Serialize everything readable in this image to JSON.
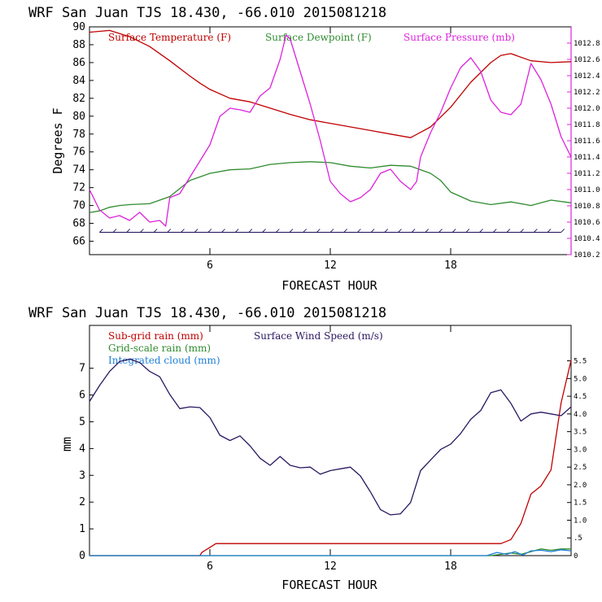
{
  "chart_data": [
    {
      "type": "line",
      "header": "WRF  San Juan TJS  18.430, -66.010  2015081218",
      "ylabel": "Degrees F",
      "xlabel": "FORECAST HOUR",
      "xlim": [
        0,
        24
      ],
      "x_ticks": [
        6,
        12,
        18
      ],
      "ylim": [
        64.5,
        90
      ],
      "y_ticks": [
        66,
        68,
        70,
        72,
        74,
        76,
        78,
        80,
        82,
        84,
        86,
        88,
        90
      ],
      "y2lim": [
        1010.2,
        1013.0
      ],
      "y2_ticks": [
        "1010.2",
        "1010.4",
        "1010.6",
        "1010.8",
        "1011.0",
        "1011.2",
        "1011.4",
        "1011.6",
        "1011.8",
        "1012.0",
        "1012.2",
        "1012.4",
        "1012.6",
        "1012.8"
      ],
      "legend": [
        {
          "label": "Surface Temperature (F)",
          "color": "#c00000"
        },
        {
          "label": "Surface Dewpoint (F)",
          "color": "#2e8b2e"
        },
        {
          "label": "Surface Pressure (mb)",
          "color": "#dd22dd"
        }
      ],
      "series": [
        {
          "name": "Surface Temperature (F)",
          "axis": "left",
          "color": "#c00000",
          "x": [
            0,
            1,
            2,
            3,
            4,
            5,
            5.5,
            6,
            7,
            8,
            9,
            10,
            11,
            12,
            13,
            14,
            15,
            16,
            17,
            18,
            19,
            20,
            20.5,
            21,
            22,
            23,
            24
          ],
          "y": [
            89.4,
            89.6,
            88.9,
            87.8,
            86.2,
            84.5,
            83.7,
            83.0,
            82.0,
            81.6,
            80.9,
            80.2,
            79.6,
            79.2,
            78.8,
            78.4,
            78.0,
            77.6,
            78.8,
            81.0,
            83.8,
            86.0,
            86.8,
            87.0,
            86.2,
            86.0,
            86.1
          ]
        },
        {
          "name": "Surface Dewpoint (F)",
          "axis": "left",
          "color": "#2e8b2e",
          "x": [
            0,
            0.5,
            1,
            1.5,
            2,
            3,
            4,
            5,
            6,
            7,
            8,
            9,
            10,
            11,
            12,
            13,
            14,
            15,
            16,
            17,
            17.5,
            18,
            19,
            20,
            21,
            22,
            22.5,
            23,
            24
          ],
          "y": [
            69.2,
            69.4,
            69.8,
            70.0,
            70.1,
            70.2,
            71.0,
            72.8,
            73.6,
            74.0,
            74.1,
            74.6,
            74.8,
            74.9,
            74.8,
            74.4,
            74.2,
            74.5,
            74.4,
            73.6,
            72.8,
            71.5,
            70.5,
            70.1,
            70.4,
            70.0,
            70.3,
            70.6,
            70.3
          ]
        },
        {
          "name": "Surface Pressure (mb)",
          "axis": "right",
          "color": "#dd22dd",
          "x": [
            0,
            0.5,
            1,
            1.5,
            2,
            2.5,
            3,
            3.5,
            3.8,
            4,
            4.5,
            5,
            5.5,
            6,
            6.5,
            7,
            7.5,
            8,
            8.5,
            9,
            9.5,
            9.8,
            10,
            10.5,
            11,
            11.5,
            12,
            12.5,
            13,
            13.5,
            14,
            14.5,
            15,
            15.5,
            16,
            16.3,
            16.5,
            17,
            17.5,
            18,
            18.5,
            19,
            19.5,
            20,
            20.5,
            21,
            21.5,
            22,
            22.5,
            23,
            23.5,
            24
          ],
          "y": [
            1011.0,
            1010.75,
            1010.65,
            1010.68,
            1010.62,
            1010.72,
            1010.6,
            1010.62,
            1010.55,
            1010.9,
            1010.95,
            1011.15,
            1011.35,
            1011.55,
            1011.9,
            1012.0,
            1011.98,
            1011.95,
            1012.15,
            1012.25,
            1012.6,
            1012.9,
            1012.85,
            1012.45,
            1012.05,
            1011.6,
            1011.1,
            1010.95,
            1010.85,
            1010.9,
            1011.0,
            1011.2,
            1011.25,
            1011.1,
            1011.0,
            1011.1,
            1011.4,
            1011.7,
            1011.95,
            1012.25,
            1012.5,
            1012.62,
            1012.45,
            1012.1,
            1011.95,
            1011.92,
            1012.05,
            1012.55,
            1012.35,
            1012.05,
            1011.65,
            1011.4
          ]
        }
      ],
      "wind_barbs": {
        "x_start": 0.5,
        "x_end": 23.5,
        "y": 67.0
      }
    },
    {
      "type": "line",
      "header": "WRF  San Juan TJS  18.430, -66.010  2015081218",
      "ylabel": "mm",
      "xlabel": "FORECAST HOUR",
      "xlim": [
        0,
        24
      ],
      "x_ticks": [
        6,
        12,
        18
      ],
      "ylim": [
        0,
        8.6
      ],
      "y_ticks": [
        0,
        1,
        2,
        3,
        4,
        5,
        6,
        7
      ],
      "y2lim": [
        0,
        6.5
      ],
      "y2_ticks": [
        "0",
        ".5",
        "1.0",
        "1.5",
        "2.0",
        "2.5",
        "3.0",
        "3.5",
        "4.0",
        "4.5",
        "5.0",
        "5.5"
      ],
      "legend": [
        {
          "label": "Sub-grid rain (mm)",
          "color": "#c00000"
        },
        {
          "label": "Surface Wind Speed (m/s)",
          "color": "#2a1860"
        },
        {
          "label": "Grid-scale rain (mm)",
          "color": "#2e8b2e"
        },
        {
          "label": "Integrated cloud (mm)",
          "color": "#1e7fd8"
        }
      ],
      "series": [
        {
          "name": "Sub-grid rain (mm)",
          "axis": "left",
          "color": "#c00000",
          "x": [
            0,
            5.5,
            5.6,
            6.2,
            6.3,
            20.5,
            21,
            21.5,
            22,
            22.5,
            23,
            23.5,
            24
          ],
          "y": [
            0,
            0,
            0.12,
            0.4,
            0.45,
            0.45,
            0.6,
            1.2,
            2.3,
            2.6,
            3.2,
            5.7,
            7.3
          ]
        },
        {
          "name": "Surface Wind Speed (m/s)",
          "axis": "right",
          "color": "#2a1860",
          "x": [
            0,
            0.5,
            1,
            1.5,
            2,
            2.5,
            3,
            3.5,
            4,
            4.5,
            5,
            5.5,
            6,
            6.5,
            7,
            7.5,
            8,
            8.5,
            9,
            9.5,
            10,
            10.5,
            11,
            11.5,
            12,
            12.5,
            13,
            13.5,
            14,
            14.5,
            15,
            15.5,
            16,
            16.5,
            17,
            17.5,
            18,
            18.5,
            19,
            19.5,
            20,
            20.5,
            21,
            21.5,
            22,
            22.5,
            23,
            23.5,
            24
          ],
          "y": [
            4.35,
            4.8,
            5.2,
            5.48,
            5.55,
            5.45,
            5.2,
            5.05,
            4.55,
            4.15,
            4.2,
            4.18,
            3.9,
            3.4,
            3.25,
            3.38,
            3.1,
            2.75,
            2.55,
            2.8,
            2.55,
            2.48,
            2.5,
            2.3,
            2.4,
            2.45,
            2.5,
            2.25,
            1.8,
            1.3,
            1.15,
            1.18,
            1.5,
            2.4,
            2.7,
            3.0,
            3.15,
            3.45,
            3.85,
            4.1,
            4.6,
            4.68,
            4.3,
            3.8,
            4.0,
            4.05,
            4.0,
            3.95,
            4.2
          ]
        },
        {
          "name": "Grid-scale rain (mm)",
          "axis": "left",
          "color": "#2e8b2e",
          "x": [
            0,
            20,
            20.5,
            21,
            21.5,
            22,
            22.5,
            23,
            23.5,
            24
          ],
          "y": [
            0,
            0,
            0.05,
            0.1,
            0.05,
            0.15,
            0.25,
            0.2,
            0.25,
            0.25
          ]
        },
        {
          "name": "Integrated cloud (mm)",
          "axis": "left",
          "color": "#1e7fd8",
          "x": [
            0,
            19.8,
            20.3,
            20.8,
            21.2,
            21.6,
            22,
            22.5,
            23,
            23.5,
            24
          ],
          "y": [
            0,
            0,
            0.12,
            0.05,
            0.15,
            0.02,
            0.18,
            0.2,
            0.15,
            0.22,
            0.18
          ]
        }
      ]
    }
  ]
}
